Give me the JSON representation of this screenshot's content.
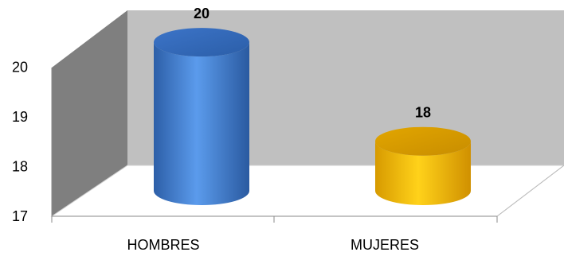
{
  "chart_data": {
    "type": "bar",
    "style": "3d-cylinder",
    "categories": [
      "HOMBRES",
      "MUJERES"
    ],
    "values": [
      20,
      18
    ],
    "data_labels": [
      "20",
      "18"
    ],
    "title": "",
    "xlabel": "",
    "ylabel": "",
    "ylim": [
      17,
      20
    ],
    "yticks": [
      "17",
      "18",
      "19",
      "20"
    ],
    "grid": false,
    "legend": "none",
    "colors": {
      "bar_1": "#4a86d8",
      "bar_2": "#f5b800",
      "back_wall": "#c0c0c0",
      "side_wall": "#808080",
      "floor": "#ffffff",
      "axis": "#888888"
    }
  }
}
